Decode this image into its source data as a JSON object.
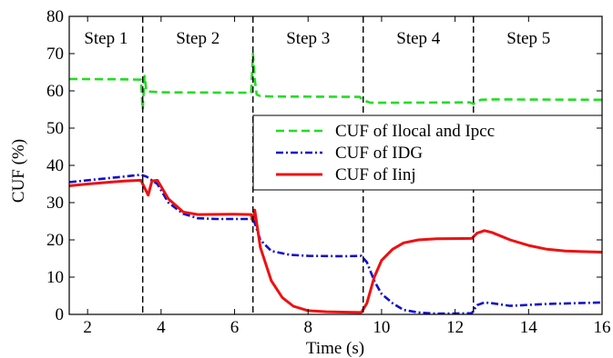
{
  "chart_data": {
    "type": "line",
    "xlabel": "Time (s)",
    "ylabel": "CUF (%)",
    "xlim": [
      1.5,
      16
    ],
    "ylim": [
      0,
      80
    ],
    "xticks": [
      2,
      4,
      6,
      8,
      10,
      12,
      14,
      16
    ],
    "yticks": [
      0,
      10,
      20,
      30,
      40,
      50,
      60,
      70,
      80
    ],
    "grid": false,
    "legend_position": "center-right",
    "step_boundaries": [
      3.5,
      6.5,
      9.5,
      12.5
    ],
    "steps": [
      {
        "label": "Step 1",
        "x": 2.5
      },
      {
        "label": "Step 2",
        "x": 5.0
      },
      {
        "label": "Step 3",
        "x": 8.0
      },
      {
        "label": "Step 4",
        "x": 11.0
      },
      {
        "label": "Step 5",
        "x": 14.0
      }
    ],
    "series": [
      {
        "name": "CUF of Ilocal and Ipcc",
        "color": "#22dd22",
        "style": "dashed",
        "x": [
          1.5,
          3.0,
          3.45,
          3.5,
          3.55,
          3.6,
          3.7,
          4.0,
          6.0,
          6.45,
          6.5,
          6.55,
          6.6,
          6.7,
          7.0,
          9.4,
          9.5,
          9.7,
          10.0,
          12.4,
          12.5,
          12.7,
          13.0,
          16.0
        ],
        "values": [
          63.2,
          63.1,
          63.0,
          55.0,
          64.0,
          60.0,
          59.8,
          59.6,
          59.5,
          59.5,
          70.0,
          63.0,
          59.0,
          58.6,
          58.5,
          58.4,
          57.5,
          56.8,
          56.8,
          56.9,
          56.5,
          57.6,
          57.7,
          57.6
        ]
      },
      {
        "name": "CUF of IDG",
        "color": "#1010cc",
        "style": "dashdot",
        "x": [
          1.5,
          2.0,
          3.0,
          3.45,
          3.6,
          3.9,
          4.2,
          4.6,
          5.0,
          5.5,
          6.45,
          6.5,
          6.7,
          7.0,
          7.5,
          8.0,
          9.0,
          9.45,
          9.6,
          9.8,
          10.0,
          10.3,
          10.6,
          11.0,
          11.5,
          12.45,
          12.6,
          12.8,
          13.0,
          13.5,
          14.5,
          16.0
        ],
        "values": [
          35.5,
          36.0,
          37.0,
          37.5,
          37.0,
          35.0,
          30.0,
          27.0,
          25.8,
          25.6,
          25.6,
          26.0,
          20.0,
          17.0,
          16.0,
          15.7,
          15.6,
          15.7,
          14.0,
          9.0,
          5.5,
          3.0,
          1.2,
          0.5,
          0.2,
          0.3,
          2.5,
          3.2,
          3.0,
          2.3,
          2.8,
          3.2
        ]
      },
      {
        "name": "CUF of Iinj",
        "color": "#ee1111",
        "style": "solid",
        "x": [
          1.5,
          2.0,
          3.0,
          3.45,
          3.55,
          3.65,
          3.75,
          3.9,
          4.2,
          4.6,
          5.0,
          6.0,
          6.45,
          6.5,
          6.55,
          6.7,
          7.0,
          7.3,
          7.6,
          8.0,
          8.5,
          9.45,
          9.6,
          9.8,
          10.0,
          10.3,
          10.6,
          11.0,
          11.5,
          12.45,
          12.6,
          12.8,
          13.0,
          13.5,
          14.0,
          14.5,
          15.0,
          16.0
        ],
        "values": [
          34.5,
          35.0,
          35.8,
          36.0,
          34.0,
          32.0,
          35.8,
          36.0,
          31.0,
          27.5,
          26.8,
          26.9,
          26.8,
          25.0,
          28.0,
          18.0,
          9.0,
          4.5,
          2.2,
          1.0,
          0.7,
          0.5,
          3.0,
          10.0,
          14.5,
          17.5,
          19.2,
          20.0,
          20.3,
          20.4,
          21.8,
          22.5,
          22.0,
          20.0,
          18.5,
          17.5,
          17.0,
          16.7
        ]
      }
    ]
  }
}
